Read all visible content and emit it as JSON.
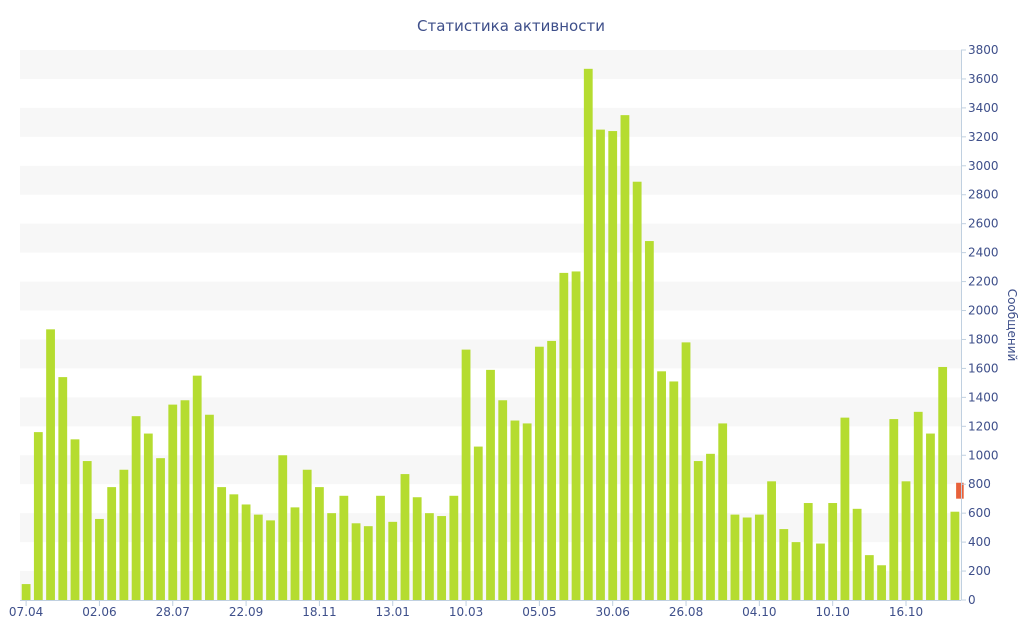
{
  "chart_data": {
    "type": "bar",
    "title": "Статистика активности",
    "xlabel": "",
    "ylabel": "Сообщений",
    "ylim": [
      0,
      3800
    ],
    "y_ticks": [
      0,
      200,
      400,
      600,
      800,
      1000,
      1200,
      1400,
      1600,
      1800,
      2000,
      2200,
      2400,
      2600,
      2800,
      3000,
      3200,
      3400,
      3600,
      3800
    ],
    "x_tick_labels": [
      {
        "label": "07.04",
        "index": 0
      },
      {
        "label": "02.06",
        "index": 6
      },
      {
        "label": "28.07",
        "index": 12
      },
      {
        "label": "22.09",
        "index": 18
      },
      {
        "label": "18.11",
        "index": 24
      },
      {
        "label": "13.01",
        "index": 30
      },
      {
        "label": "10.03",
        "index": 36
      },
      {
        "label": "05.05",
        "index": 42
      },
      {
        "label": "30.06",
        "index": 48
      },
      {
        "label": "26.08",
        "index": 54
      },
      {
        "label": "04.10",
        "index": 60
      },
      {
        "label": "10.10",
        "index": 66
      },
      {
        "label": "16.10",
        "index": 72
      }
    ],
    "y_axis_side": "right",
    "grid": "horizontal alternating bands",
    "colors": {
      "bar": "#b5dc30",
      "highlight": "#e8613a",
      "text": "#3e4f8a",
      "band": "#f7f7f7"
    },
    "values": [
      110,
      1160,
      1870,
      1540,
      1110,
      960,
      560,
      780,
      900,
      1270,
      1150,
      980,
      1350,
      1380,
      1550,
      1280,
      780,
      730,
      660,
      590,
      550,
      1000,
      640,
      900,
      780,
      600,
      720,
      530,
      510,
      720,
      540,
      870,
      710,
      600,
      580,
      720,
      1730,
      1060,
      1590,
      1380,
      1240,
      1220,
      1750,
      1790,
      2260,
      2270,
      3670,
      3250,
      3240,
      3350,
      2890,
      2480,
      1580,
      1510,
      1780,
      960,
      1010,
      1220,
      590,
      570,
      590,
      820,
      490,
      400,
      670,
      390,
      670,
      1260,
      630,
      310,
      240,
      1250,
      820,
      1300,
      1150,
      1610,
      610
    ],
    "highlight": {
      "value": 810,
      "base": 700
    }
  }
}
